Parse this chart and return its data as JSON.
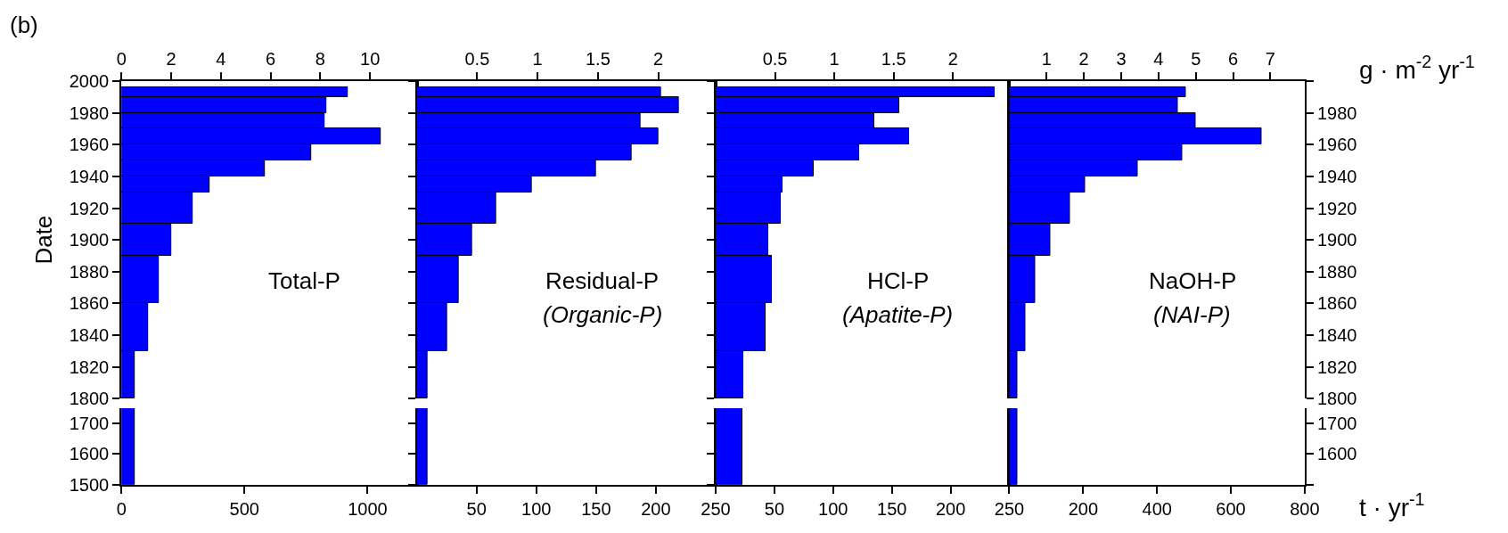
{
  "chart_data": [
    {
      "type": "histogram",
      "orientation": "horizontal",
      "title": "(b)",
      "ylabel": "Date",
      "color": "#0000ff",
      "annotations": [
        "Total-P"
      ],
      "bins": [
        1800,
        1830,
        1860,
        1890,
        1910,
        1930,
        1940,
        1950,
        1960,
        1970,
        1980,
        1990,
        1996
      ],
      "values": [
        0.55,
        1.09,
        1.52,
        2.0,
        2.85,
        3.56,
        5.77,
        7.64,
        10.42,
        8.19,
        8.26,
        9.12
      ],
      "xlim": [
        0,
        11.88
      ],
      "xticks": [
        0,
        2,
        4,
        6,
        8,
        10
      ],
      "ylim": [
        1800,
        2000
      ],
      "yticks": [
        1800,
        1820,
        1840,
        1860,
        1880,
        1900,
        1920,
        1940,
        1960,
        1980,
        2000
      ]
    },
    {
      "type": "histogram",
      "orientation": "horizontal",
      "color": "#0000ff",
      "bins": [
        1500,
        1750
      ],
      "values": [
        56
      ],
      "xlim": [
        0,
        1200
      ],
      "xticks": [
        0,
        500,
        1000
      ],
      "ylim": [
        1500,
        1750
      ],
      "yticks": [
        1500,
        1600,
        1700
      ]
    },
    {
      "type": "histogram",
      "orientation": "horizontal",
      "color": "#0000ff",
      "annotations": [
        "Residual-P",
        "(Organic-P)"
      ],
      "bins": [
        1800,
        1830,
        1860,
        1890,
        1910,
        1930,
        1940,
        1950,
        1960,
        1970,
        1980,
        1990,
        1996
      ],
      "values": [
        0.09,
        0.25,
        0.35,
        0.46,
        0.66,
        0.95,
        1.48,
        1.78,
        2.0,
        1.85,
        2.17,
        2.02
      ],
      "xlim": [
        0,
        2.475
      ],
      "xticks": [
        0.5,
        1,
        1.5,
        2
      ],
      "ylim": [
        1800,
        2000
      ],
      "yticks": [
        1800,
        1820,
        1840,
        1860,
        1880,
        1900,
        1920,
        1940,
        1960,
        1980,
        2000
      ],
      "tick_labels": "x"
    },
    {
      "type": "histogram",
      "orientation": "horizontal",
      "color": "#0000ff",
      "bins": [
        1500,
        1750
      ],
      "values": [
        9
      ],
      "xlim": [
        0,
        250
      ],
      "xticks": [
        50,
        100,
        150,
        200,
        250
      ],
      "ylim": [
        1500,
        1750
      ],
      "yticks": [
        1500,
        1600,
        1700
      ],
      "tick_labels": "x"
    },
    {
      "type": "histogram",
      "orientation": "horizontal",
      "color": "#0000ff",
      "annotations": [
        "HCl-P",
        "(Apatite-P)"
      ],
      "bins": [
        1800,
        1830,
        1860,
        1890,
        1910,
        1930,
        1940,
        1950,
        1960,
        1970,
        1980,
        1990,
        1996
      ],
      "values": [
        0.23,
        0.42,
        0.47,
        0.44,
        0.55,
        0.56,
        0.83,
        1.21,
        1.63,
        1.34,
        1.55,
        2.35
      ],
      "xlim": [
        0,
        2.475
      ],
      "xticks": [
        0.5,
        1,
        1.5,
        2
      ],
      "ylim": [
        1800,
        2000
      ],
      "yticks": [
        1800,
        1820,
        1840,
        1860,
        1880,
        1900,
        1920,
        1940,
        1960,
        1980,
        2000
      ],
      "tick_labels": "x"
    },
    {
      "type": "histogram",
      "orientation": "horizontal",
      "color": "#0000ff",
      "bins": [
        1500,
        1750
      ],
      "values": [
        23
      ],
      "xlim": [
        0,
        250
      ],
      "xticks": [
        50,
        100,
        150,
        200,
        250
      ],
      "ylim": [
        1500,
        1750
      ],
      "yticks": [
        1500,
        1600,
        1700
      ],
      "tick_labels": "x"
    },
    {
      "type": "histogram",
      "orientation": "horizontal",
      "color": "#0000ff",
      "annotations": [
        "NaOH-P",
        "(NAI-P)"
      ],
      "xlabel": "g · m$^{-2}$ yr$^{-1}$",
      "bins": [
        1800,
        1830,
        1860,
        1890,
        1910,
        1930,
        1940,
        1950,
        1960,
        1970,
        1980,
        1990,
        1996
      ],
      "values": [
        0.21,
        0.42,
        0.69,
        1.1,
        1.63,
        2.03,
        3.44,
        4.63,
        6.77,
        5.0,
        4.51,
        4.72
      ],
      "xlim": [
        0,
        7.92
      ],
      "xticks": [
        1,
        2,
        3,
        4,
        5,
        6,
        7
      ],
      "ylim": [
        1800,
        2000
      ],
      "yticks": [
        1800,
        1820,
        1840,
        1860,
        1880,
        1900,
        1920,
        1940,
        1960,
        1980,
        {
          "value": 2000,
          "label": null
        }
      ]
    },
    {
      "type": "histogram",
      "orientation": "horizontal",
      "color": "#0000ff",
      "bins": [
        1500,
        1750
      ],
      "values": [
        21
      ],
      "xlabel": "t · yr$^{-1}$",
      "xlim": [
        0,
        800
      ],
      "xticks": [
        200,
        400,
        600,
        800
      ],
      "ylim": [
        1500,
        1750
      ],
      "yticks": [
        {
          "value": 1500,
          "label": null
        },
        1600,
        1700
      ]
    }
  ]
}
